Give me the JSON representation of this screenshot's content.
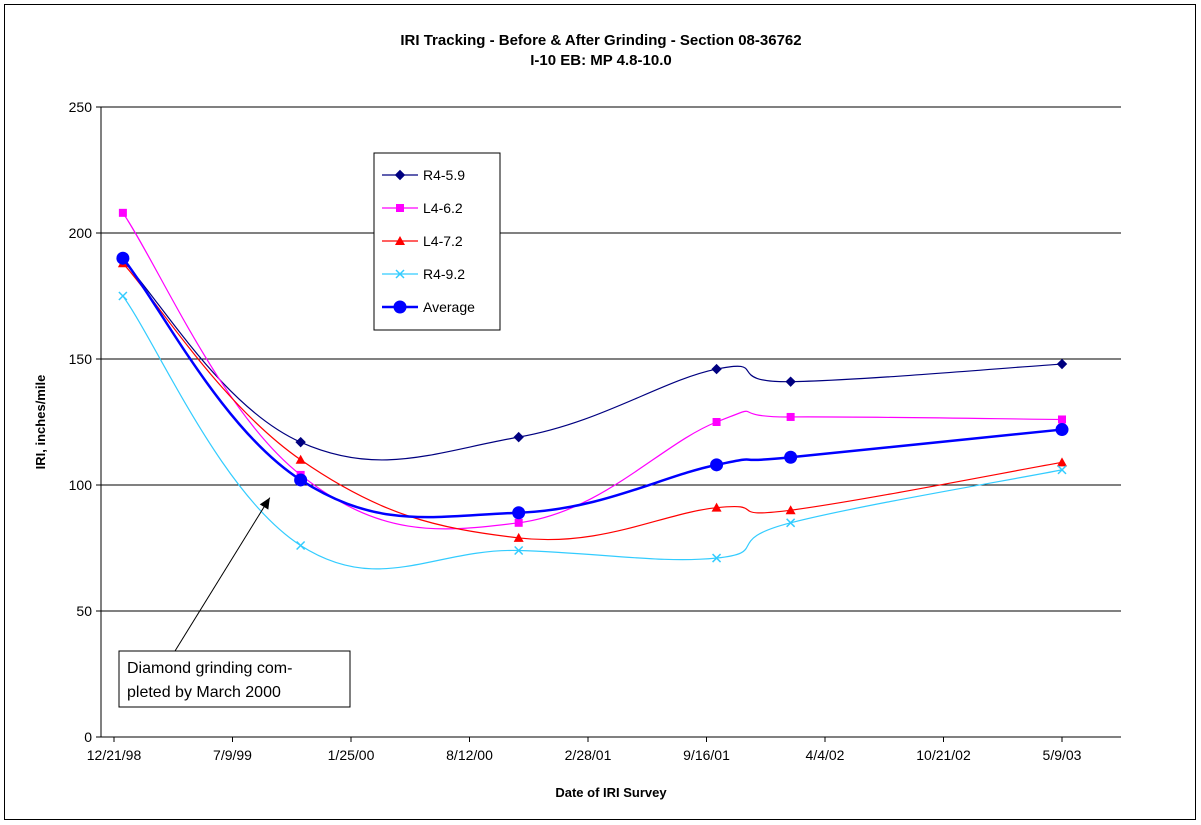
{
  "chart_data": {
    "type": "line",
    "title": "IRI Tracking - Before & After Grinding - Section 08-36762",
    "subtitle": "I-10 EB: MP 4.8-10.0",
    "xlabel": "Date of IRI Survey",
    "ylabel": "IRI, inches/mile",
    "xlim": [
      "1998-12-21",
      "2003-05-09"
    ],
    "ylim": [
      0,
      250
    ],
    "x_tick_labels": [
      "12/21/98",
      "7/9/99",
      "1/25/00",
      "8/12/00",
      "2/28/01",
      "9/16/01",
      "4/4/02",
      "10/21/02",
      "5/9/03"
    ],
    "x_tick_dates": [
      "1998-12-21",
      "1999-07-09",
      "2000-01-25",
      "2000-08-12",
      "2001-02-28",
      "2001-09-16",
      "2002-04-04",
      "2002-10-21",
      "2003-05-09"
    ],
    "y_ticks": [
      0,
      50,
      100,
      150,
      200,
      250
    ],
    "grid": "horizontal",
    "legend_position": "top-left inside plot",
    "series": [
      {
        "name": "R4-5.9",
        "color": "#000080",
        "marker": "diamond",
        "points": [
          {
            "x": "1999-01-05",
            "y": 189
          },
          {
            "x": "1999-11-01",
            "y": 117
          },
          {
            "x": "2000-11-03",
            "y": 119
          },
          {
            "x": "2001-10-03",
            "y": 146
          },
          {
            "x": "2002-02-05",
            "y": 141
          },
          {
            "x": "2003-05-09",
            "y": 148
          }
        ]
      },
      {
        "name": "L4-6.2",
        "color": "#ff00ff",
        "marker": "square",
        "points": [
          {
            "x": "1999-01-05",
            "y": 208
          },
          {
            "x": "1999-11-01",
            "y": 104
          },
          {
            "x": "2000-11-03",
            "y": 85
          },
          {
            "x": "2001-10-03",
            "y": 125
          },
          {
            "x": "2002-02-05",
            "y": 127
          },
          {
            "x": "2003-05-09",
            "y": 126
          }
        ]
      },
      {
        "name": "L4-7.2",
        "color": "#ff0000",
        "marker": "triangle",
        "points": [
          {
            "x": "1999-01-05",
            "y": 188
          },
          {
            "x": "1999-11-01",
            "y": 110
          },
          {
            "x": "2000-11-03",
            "y": 79
          },
          {
            "x": "2001-10-03",
            "y": 91
          },
          {
            "x": "2002-02-05",
            "y": 90
          },
          {
            "x": "2003-05-09",
            "y": 109
          }
        ]
      },
      {
        "name": "R4-9.2",
        "color": "#33ccff",
        "marker": "x",
        "points": [
          {
            "x": "1999-01-05",
            "y": 175
          },
          {
            "x": "1999-11-01",
            "y": 76
          },
          {
            "x": "2000-11-03",
            "y": 74
          },
          {
            "x": "2001-10-03",
            "y": 71
          },
          {
            "x": "2002-02-05",
            "y": 85
          },
          {
            "x": "2003-05-09",
            "y": 106
          }
        ]
      },
      {
        "name": "Average",
        "color": "#0000ff",
        "marker": "circle",
        "bold": true,
        "points": [
          {
            "x": "1999-01-05",
            "y": 190
          },
          {
            "x": "1999-11-01",
            "y": 102
          },
          {
            "x": "2000-11-03",
            "y": 89
          },
          {
            "x": "2001-10-03",
            "y": 108
          },
          {
            "x": "2002-02-05",
            "y": 111
          },
          {
            "x": "2003-05-09",
            "y": 122
          }
        ]
      }
    ],
    "annotation": {
      "lines": [
        "Diamond grinding com-",
        "pleted by March 2000"
      ],
      "arrow_target": {
        "x": "1999-09-10",
        "y": 95
      }
    }
  }
}
